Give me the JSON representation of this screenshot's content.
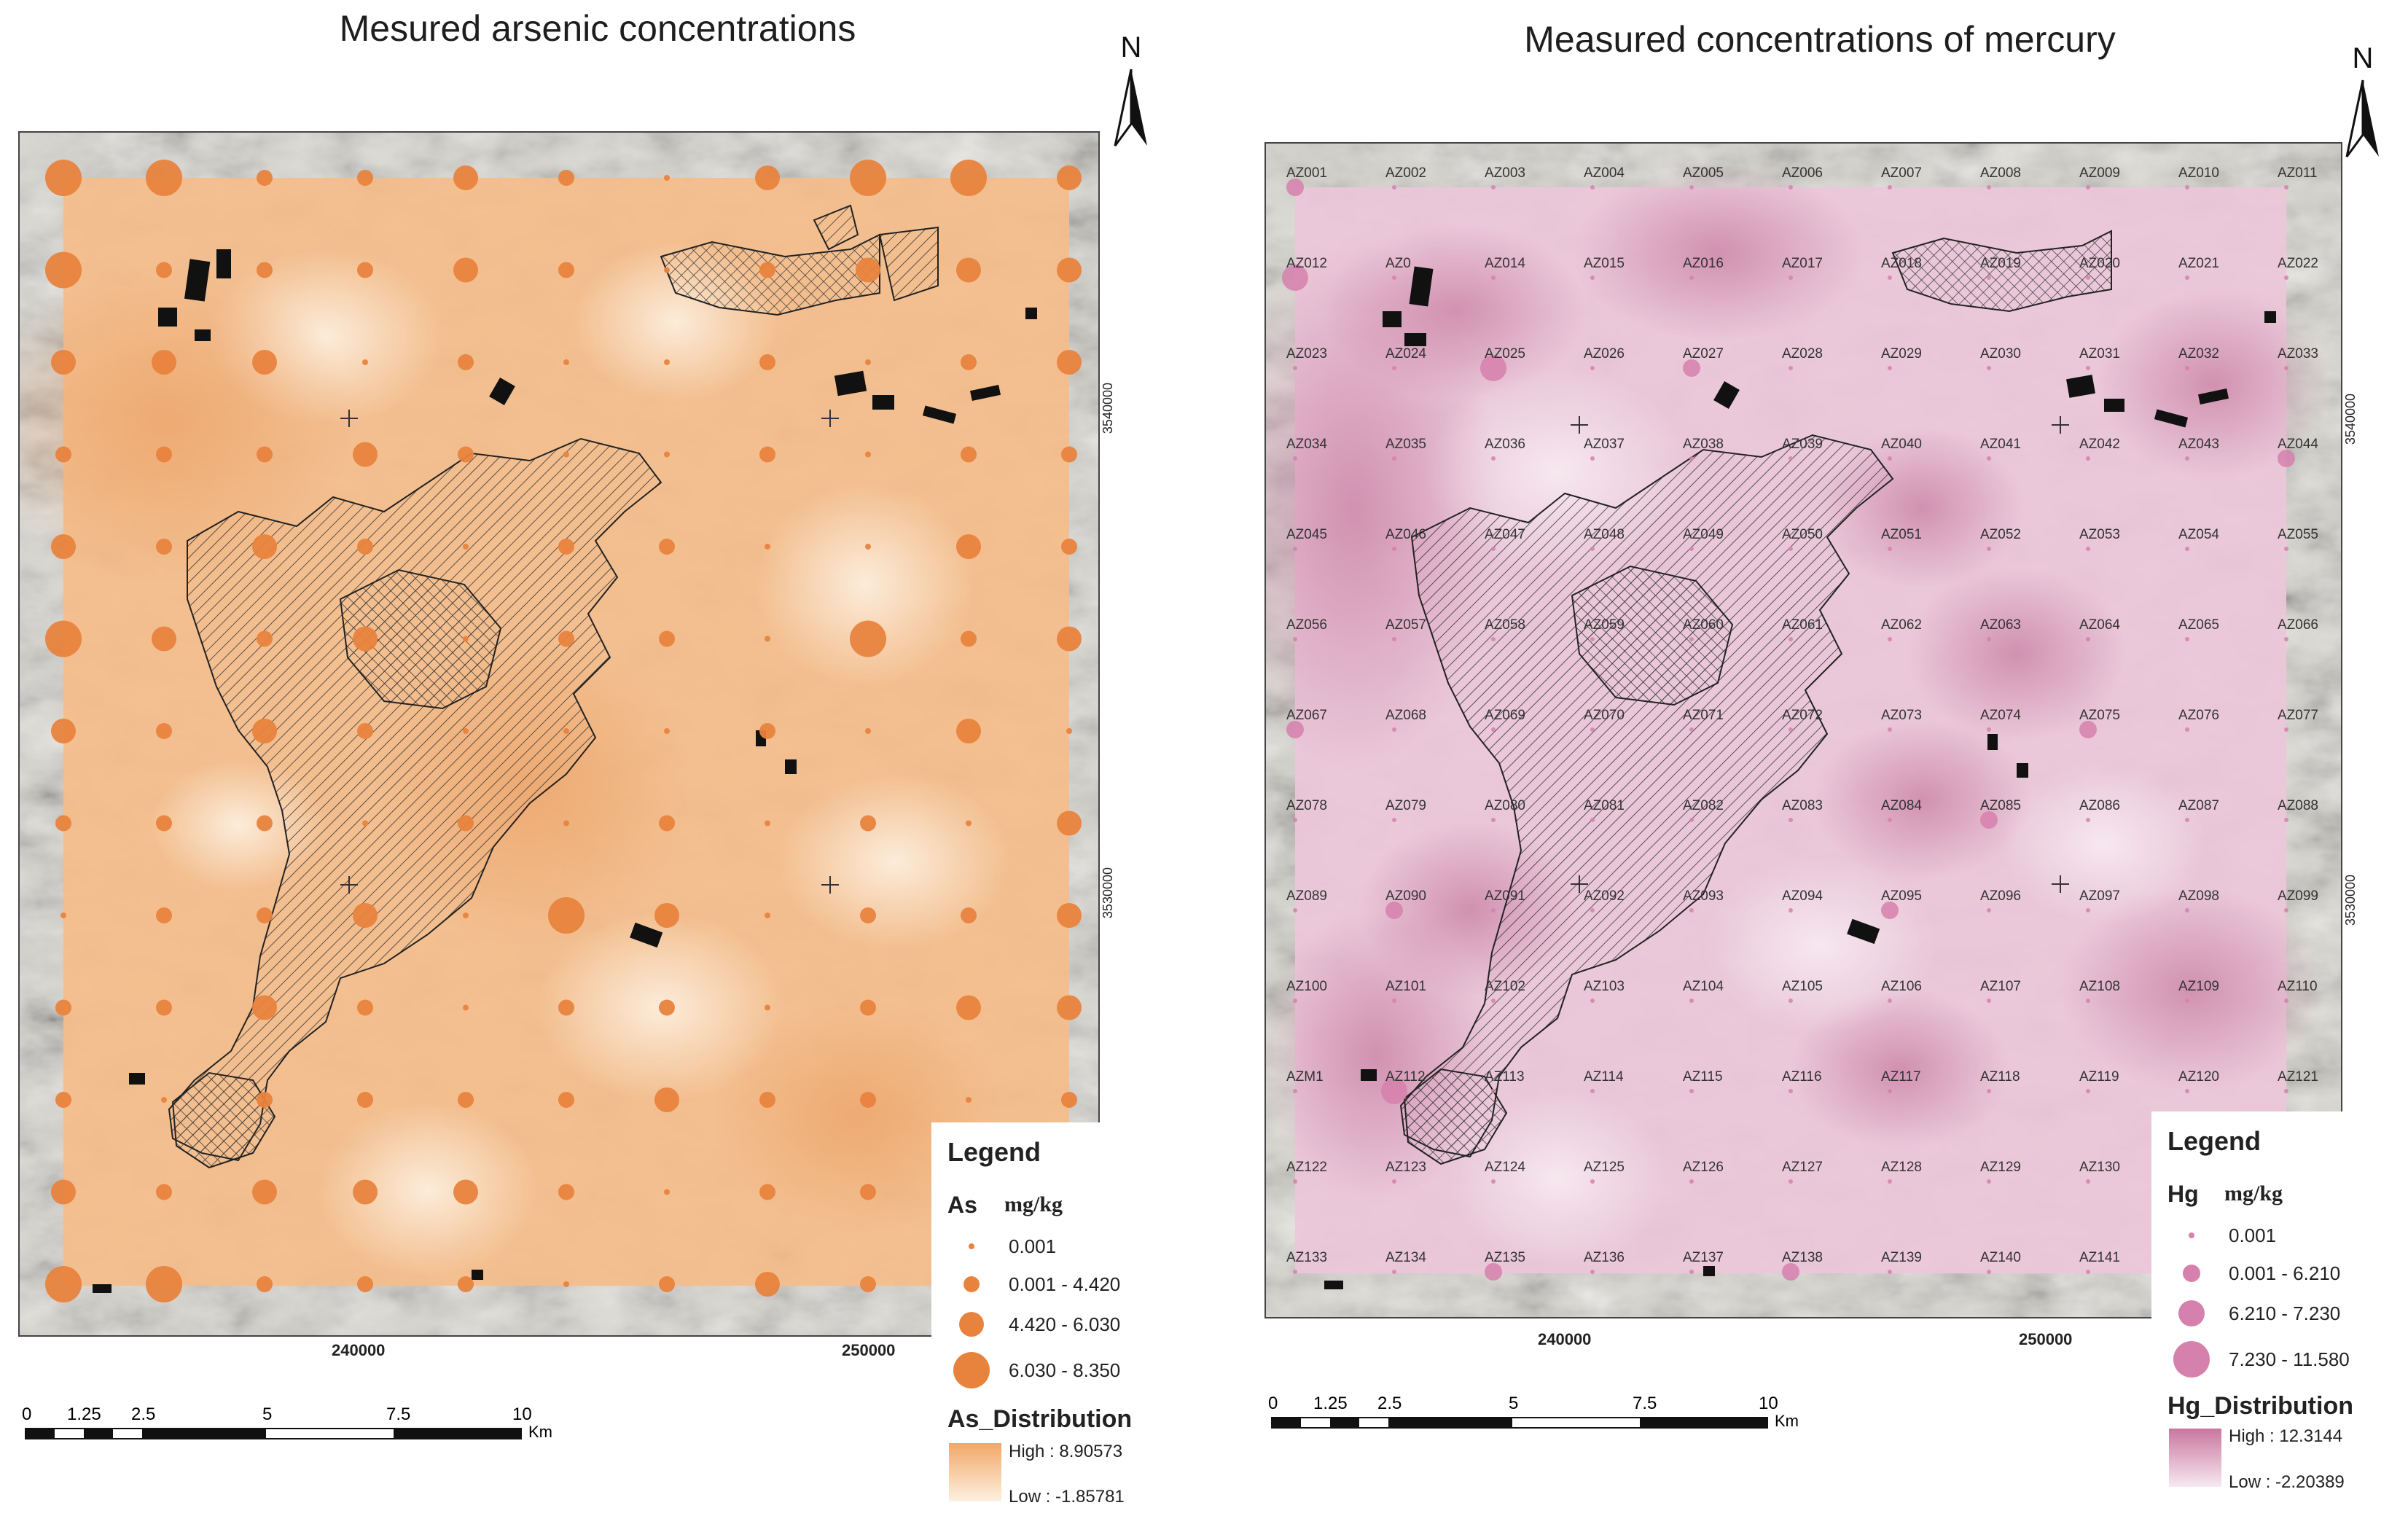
{
  "maps": [
    {
      "title": "Mesured arsenic concentrations",
      "north_label": "N",
      "y_ticks": [
        "3540000",
        "3530000"
      ],
      "x_ticks": [
        "240000",
        "250000"
      ],
      "scale": {
        "labels": [
          "0",
          "1.25",
          "2.5",
          "5",
          "7.5",
          "10"
        ],
        "unit": "Km"
      },
      "legend": {
        "title": "Legend",
        "variable": "As",
        "unit": "mg/kg",
        "classes": [
          "0.001",
          "0.001 - 4.420",
          "4.420 - 6.030",
          "6.030 - 8.350"
        ],
        "distribution_title": "As_Distribution",
        "high_label": "High : 8.90573",
        "low_label": "Low : -1.85781"
      },
      "colors": {
        "surface": "#f4b57e",
        "surface_light": "#fbe6cc",
        "points": "#e8833e",
        "ramp_high": "#f2a868",
        "ramp_low": "#fdf0e0"
      }
    },
    {
      "title": "Measured concentrations of mercury",
      "north_label": "N",
      "y_ticks": [
        "3540000",
        "3530000"
      ],
      "x_ticks": [
        "240000",
        "250000"
      ],
      "scale": {
        "labels": [
          "0",
          "1.25",
          "2.5",
          "5",
          "7.5",
          "10"
        ],
        "unit": "Km"
      },
      "legend": {
        "title": "Legend",
        "variable": "Hg",
        "unit": "mg/kg",
        "classes": [
          "0.001",
          "0.001 - 6.210",
          "6.210 - 7.230",
          "7.230 - 11.580"
        ],
        "distribution_title": "Hg_Distribution",
        "high_label": "High : 12.3144",
        "low_label": "Low : -2.20389"
      },
      "colors": {
        "surface": "#e9bfd3",
        "surface_light": "#f6e3ee",
        "points": "#d680ad",
        "ramp_high": "#c9779f",
        "ramp_low": "#f7e8f0"
      }
    }
  ],
  "as_sample_classes": [
    [
      3,
      3,
      1,
      1,
      2,
      1,
      0,
      2,
      3,
      3,
      2
    ],
    [
      3,
      1,
      1,
      1,
      2,
      1,
      0,
      1,
      2,
      2,
      2
    ],
    [
      2,
      2,
      2,
      0,
      1,
      0,
      0,
      1,
      0,
      1,
      2
    ],
    [
      1,
      1,
      1,
      2,
      1,
      0,
      0,
      1,
      0,
      1,
      1
    ],
    [
      2,
      1,
      2,
      1,
      0,
      1,
      1,
      0,
      0,
      2,
      1
    ],
    [
      3,
      2,
      1,
      2,
      0,
      1,
      1,
      0,
      3,
      1,
      2
    ],
    [
      2,
      1,
      2,
      1,
      0,
      0,
      0,
      1,
      0,
      2,
      0
    ],
    [
      1,
      1,
      1,
      0,
      1,
      0,
      1,
      0,
      1,
      0,
      2
    ],
    [
      0,
      1,
      1,
      2,
      0,
      3,
      2,
      0,
      1,
      1,
      2
    ],
    [
      1,
      1,
      2,
      1,
      0,
      1,
      1,
      0,
      1,
      2,
      2
    ],
    [
      1,
      0,
      1,
      1,
      1,
      1,
      2,
      1,
      1,
      0,
      1
    ],
    [
      2,
      1,
      2,
      2,
      2,
      1,
      0,
      1,
      1,
      1,
      0
    ],
    [
      3,
      3,
      1,
      1,
      1,
      0,
      1,
      2,
      1,
      2,
      1
    ]
  ],
  "hg_sample_ids": [
    [
      "AZ001",
      "AZ002",
      "AZ003",
      "AZ004",
      "AZ005",
      "AZ006",
      "AZ007",
      "AZ008",
      "AZ009",
      "AZ010",
      "AZ011"
    ],
    [
      "AZ012",
      "AZ0",
      "AZ014",
      "AZ015",
      "AZ016",
      "AZ017",
      "AZ018",
      "AZ019",
      "AZ020",
      "AZ021",
      "AZ022"
    ],
    [
      "AZ023",
      "AZ024",
      "AZ025",
      "AZ026",
      "AZ027",
      "AZ028",
      "AZ029",
      "AZ030",
      "AZ031",
      "AZ032",
      "AZ033"
    ],
    [
      "AZ034",
      "AZ035",
      "AZ036",
      "AZ037",
      "AZ038",
      "AZ039",
      "AZ040",
      "AZ041",
      "AZ042",
      "AZ043",
      "AZ044"
    ],
    [
      "AZ045",
      "AZ046",
      "AZ047",
      "AZ048",
      "AZ049",
      "AZ050",
      "AZ051",
      "AZ052",
      "AZ053",
      "AZ054",
      "AZ055"
    ],
    [
      "AZ056",
      "AZ057",
      "AZ058",
      "AZ059",
      "AZ060",
      "AZ061",
      "AZ062",
      "AZ063",
      "AZ064",
      "AZ065",
      "AZ066"
    ],
    [
      "AZ067",
      "AZ068",
      "AZ069",
      "AZ070",
      "AZ071",
      "AZ072",
      "AZ073",
      "AZ074",
      "AZ075",
      "AZ076",
      "AZ077"
    ],
    [
      "AZ078",
      "AZ079",
      "AZ080",
      "AZ081",
      "AZ082",
      "AZ083",
      "AZ084",
      "AZ085",
      "AZ086",
      "AZ087",
      "AZ088"
    ],
    [
      "AZ089",
      "AZ090",
      "AZ091",
      "AZ092",
      "AZ093",
      "AZ094",
      "AZ095",
      "AZ096",
      "AZ097",
      "AZ098",
      "AZ099"
    ],
    [
      "AZ100",
      "AZ101",
      "AZ102",
      "AZ103",
      "AZ104",
      "AZ105",
      "AZ106",
      "AZ107",
      "AZ108",
      "AZ109",
      "AZ110"
    ],
    [
      "AZM1",
      "AZ112",
      "AZ113",
      "AZ114",
      "AZ115",
      "AZ116",
      "AZ117",
      "AZ118",
      "AZ119",
      "AZ120",
      "AZ121"
    ],
    [
      "AZ122",
      "AZ123",
      "AZ124",
      "AZ125",
      "AZ126",
      "AZ127",
      "AZ128",
      "AZ129",
      "AZ130",
      "",
      ""
    ],
    [
      "AZ133",
      "AZ134",
      "AZ135",
      "AZ136",
      "AZ137",
      "AZ138",
      "AZ139",
      "AZ140",
      "AZ141",
      "",
      ""
    ]
  ],
  "hg_sample_classes": [
    [
      1,
      0,
      0,
      0,
      0,
      0,
      0,
      0,
      0,
      0,
      0
    ],
    [
      2,
      0,
      0,
      0,
      0,
      0,
      0,
      0,
      0,
      0,
      0
    ],
    [
      0,
      0,
      2,
      0,
      1,
      0,
      0,
      0,
      0,
      0,
      0
    ],
    [
      0,
      0,
      0,
      0,
      0,
      0,
      0,
      0,
      0,
      0,
      1
    ],
    [
      0,
      0,
      0,
      0,
      0,
      0,
      0,
      0,
      0,
      0,
      0
    ],
    [
      0,
      0,
      0,
      0,
      0,
      0,
      0,
      0,
      0,
      0,
      0
    ],
    [
      1,
      0,
      0,
      0,
      0,
      0,
      0,
      0,
      1,
      0,
      0
    ],
    [
      0,
      0,
      0,
      0,
      0,
      0,
      0,
      1,
      0,
      0,
      0
    ],
    [
      0,
      1,
      0,
      0,
      0,
      0,
      1,
      0,
      0,
      0,
      0
    ],
    [
      0,
      0,
      0,
      0,
      0,
      0,
      0,
      0,
      0,
      0,
      0
    ],
    [
      0,
      2,
      0,
      0,
      0,
      0,
      0,
      0,
      0,
      0,
      0
    ],
    [
      0,
      0,
      0,
      0,
      0,
      0,
      0,
      0,
      0,
      0,
      0
    ],
    [
      0,
      0,
      1,
      0,
      0,
      1,
      0,
      0,
      0,
      0,
      0
    ]
  ]
}
